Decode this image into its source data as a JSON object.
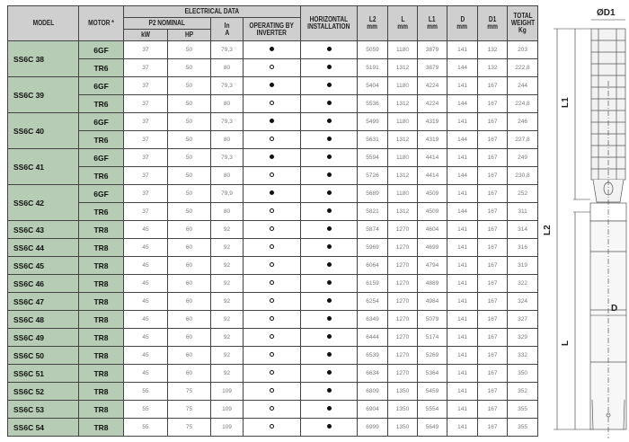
{
  "headers": {
    "model": "MODEL",
    "motor": "MOTOR *",
    "electrical": "ELECTRICAL DATA",
    "p2": "P2 NOMINAL",
    "kw": "kW",
    "hp": "HP",
    "in_top": "In",
    "in_unit": "A",
    "inverter_1": "OPERATING BY",
    "inverter_2": "INVERTER",
    "horizontal_1": "HORIZONTAL",
    "horizontal_2": "INSTALLATION",
    "l2": "L2",
    "l": "L",
    "l1": "L1",
    "d": "D",
    "d1": "D1",
    "mm": "mm",
    "weight_1": "TOTAL",
    "weight_2": "WEIGHT",
    "weight_3": "Kg"
  },
  "models": [
    {
      "model": "SS6C 38",
      "rows": [
        {
          "motor": "6GF",
          "kw": "37",
          "hp": "50",
          "in": "79,3",
          "inverter": "filled",
          "horizontal": "filled",
          "l2": "5059",
          "l": "1180",
          "l1": "3879",
          "d": "141",
          "d1": "132",
          "weight": "203"
        },
        {
          "motor": "TR6",
          "kw": "37",
          "hp": "50",
          "in": "80",
          "inverter": "hollow",
          "horizontal": "filled",
          "l2": "5191",
          "l": "1312",
          "l1": "3879",
          "d": "144",
          "d1": "132",
          "weight": "222,8"
        }
      ]
    },
    {
      "model": "SS6C 39",
      "rows": [
        {
          "motor": "6GF",
          "kw": "37",
          "hp": "50",
          "in": "79,3",
          "inverter": "filled",
          "horizontal": "filled",
          "l2": "5404",
          "l": "1180",
          "l1": "4224",
          "d": "141",
          "d1": "167",
          "weight": "244"
        },
        {
          "motor": "TR6",
          "kw": "37",
          "hp": "50",
          "in": "80",
          "inverter": "hollow",
          "horizontal": "filled",
          "l2": "5536",
          "l": "1312",
          "l1": "4224",
          "d": "144",
          "d1": "167",
          "weight": "224,8"
        }
      ]
    },
    {
      "model": "SS6C 40",
      "rows": [
        {
          "motor": "6GF",
          "kw": "37",
          "hp": "50",
          "in": "79,3",
          "inverter": "filled",
          "horizontal": "filled",
          "l2": "5499",
          "l": "1180",
          "l1": "4319",
          "d": "141",
          "d1": "167",
          "weight": "246"
        },
        {
          "motor": "TR6",
          "kw": "37",
          "hp": "50",
          "in": "80",
          "inverter": "hollow",
          "horizontal": "filled",
          "l2": "5631",
          "l": "1312",
          "l1": "4319",
          "d": "144",
          "d1": "167",
          "weight": "227,8"
        }
      ]
    },
    {
      "model": "SS6C 41",
      "rows": [
        {
          "motor": "6GF",
          "kw": "37",
          "hp": "50",
          "in": "79,3",
          "inverter": "filled",
          "horizontal": "filled",
          "l2": "5594",
          "l": "1180",
          "l1": "4414",
          "d": "141",
          "d1": "167",
          "weight": "249"
        },
        {
          "motor": "TR6",
          "kw": "37",
          "hp": "50",
          "in": "80",
          "inverter": "hollow",
          "horizontal": "filled",
          "l2": "5726",
          "l": "1312",
          "l1": "4414",
          "d": "144",
          "d1": "167",
          "weight": "230,8"
        }
      ]
    },
    {
      "model": "SS6C 42",
      "rows": [
        {
          "motor": "6GF",
          "kw": "37",
          "hp": "50",
          "in": "79,9",
          "inverter": "filled",
          "horizontal": "filled",
          "l2": "5689",
          "l": "1180",
          "l1": "4509",
          "d": "141",
          "d1": "167",
          "weight": "252"
        },
        {
          "motor": "TR6",
          "kw": "37",
          "hp": "50",
          "in": "80",
          "inverter": "hollow",
          "horizontal": "filled",
          "l2": "5821",
          "l": "1312",
          "l1": "4509",
          "d": "144",
          "d1": "167",
          "weight": "311"
        }
      ]
    },
    {
      "model": "SS6C 43",
      "rows": [
        {
          "motor": "TR8",
          "kw": "45",
          "hp": "60",
          "in": "92",
          "inverter": "hollow",
          "horizontal": "filled",
          "l2": "5874",
          "l": "1270",
          "l1": "4604",
          "d": "141",
          "d1": "167",
          "weight": "314"
        }
      ]
    },
    {
      "model": "SS6C 44",
      "rows": [
        {
          "motor": "TR8",
          "kw": "45",
          "hp": "60",
          "in": "92",
          "inverter": "hollow",
          "horizontal": "filled",
          "l2": "5969",
          "l": "1270",
          "l1": "4699",
          "d": "141",
          "d1": "167",
          "weight": "316"
        }
      ]
    },
    {
      "model": "SS6C 45",
      "rows": [
        {
          "motor": "TR8",
          "kw": "45",
          "hp": "60",
          "in": "92",
          "inverter": "hollow",
          "horizontal": "filled",
          "l2": "6064",
          "l": "1270",
          "l1": "4794",
          "d": "141",
          "d1": "167",
          "weight": "319"
        }
      ]
    },
    {
      "model": "SS6C 46",
      "rows": [
        {
          "motor": "TR8",
          "kw": "45",
          "hp": "60",
          "in": "92",
          "inverter": "hollow",
          "horizontal": "filled",
          "l2": "6159",
          "l": "1270",
          "l1": "4889",
          "d": "141",
          "d1": "167",
          "weight": "322"
        }
      ]
    },
    {
      "model": "SS6C 47",
      "rows": [
        {
          "motor": "TR8",
          "kw": "45",
          "hp": "60",
          "in": "92",
          "inverter": "hollow",
          "horizontal": "filled",
          "l2": "6254",
          "l": "1270",
          "l1": "4984",
          "d": "141",
          "d1": "167",
          "weight": "324"
        }
      ]
    },
    {
      "model": "SS6C 48",
      "rows": [
        {
          "motor": "TR8",
          "kw": "45",
          "hp": "60",
          "in": "92",
          "inverter": "hollow",
          "horizontal": "filled",
          "l2": "6349",
          "l": "1270",
          "l1": "5079",
          "d": "141",
          "d1": "167",
          "weight": "327"
        }
      ]
    },
    {
      "model": "SS6C 49",
      "rows": [
        {
          "motor": "TR8",
          "kw": "45",
          "hp": "60",
          "in": "92",
          "inverter": "hollow",
          "horizontal": "filled",
          "l2": "6444",
          "l": "1270",
          "l1": "5174",
          "d": "141",
          "d1": "167",
          "weight": "329"
        }
      ]
    },
    {
      "model": "SS6C 50",
      "rows": [
        {
          "motor": "TR8",
          "kw": "45",
          "hp": "60",
          "in": "92",
          "inverter": "hollow",
          "horizontal": "filled",
          "l2": "6539",
          "l": "1270",
          "l1": "5269",
          "d": "141",
          "d1": "167",
          "weight": "332"
        }
      ]
    },
    {
      "model": "SS6C 51",
      "rows": [
        {
          "motor": "TR8",
          "kw": "45",
          "hp": "60",
          "in": "92",
          "inverter": "hollow",
          "horizontal": "filled",
          "l2": "6634",
          "l": "1270",
          "l1": "5364",
          "d": "141",
          "d1": "167",
          "weight": "350"
        }
      ]
    },
    {
      "model": "SS6C 52",
      "rows": [
        {
          "motor": "TR8",
          "kw": "55",
          "hp": "75",
          "in": "109",
          "inverter": "hollow",
          "horizontal": "filled",
          "l2": "6809",
          "l": "1350",
          "l1": "5459",
          "d": "141",
          "d1": "167",
          "weight": "352"
        }
      ]
    },
    {
      "model": "SS6C 53",
      "rows": [
        {
          "motor": "TR8",
          "kw": "55",
          "hp": "75",
          "in": "109",
          "inverter": "hollow",
          "horizontal": "filled",
          "l2": "6904",
          "l": "1350",
          "l1": "5554",
          "d": "141",
          "d1": "167",
          "weight": "355"
        }
      ]
    },
    {
      "model": "SS6C 54",
      "rows": [
        {
          "motor": "TR8",
          "kw": "55",
          "hp": "75",
          "in": "109",
          "inverter": "hollow",
          "horizontal": "filled",
          "l2": "6999",
          "l": "1350",
          "l1": "5649",
          "d": "141",
          "d1": "167",
          "weight": "355"
        }
      ]
    }
  ],
  "drawing": {
    "d1_label": "ØD1",
    "l1_label": "L1",
    "l2_label": "L2",
    "l_label": "L",
    "d_label": "D"
  }
}
